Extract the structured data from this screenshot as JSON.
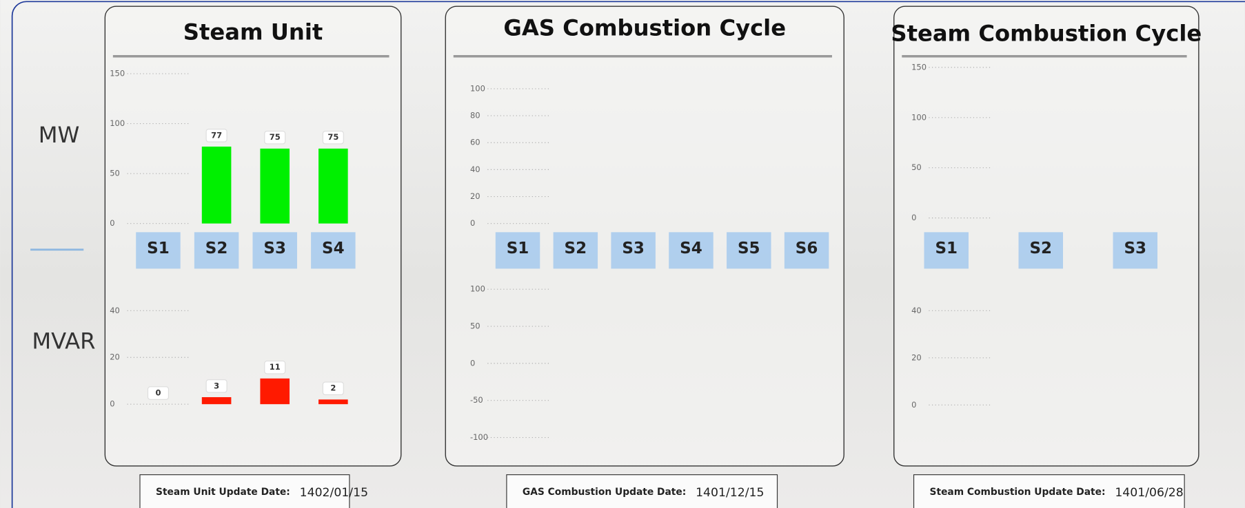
{
  "row_labels": {
    "mw": "MW",
    "mvar": "MVAR"
  },
  "panels": [
    {
      "title": "Steam Unit",
      "update_label": "Steam Unit Update Date:",
      "update_date": "1402/01/15"
    },
    {
      "title": "GAS Combustion Cycle",
      "update_label": "GAS Combustion Update Date:",
      "update_date": "1401/12/15"
    },
    {
      "title": "Steam Combustion Cycle",
      "update_label": "Steam Combustion Update Date:",
      "update_date": "1401/06/28"
    }
  ],
  "chart_data": [
    {
      "type": "bar",
      "categories": [
        "S1",
        "S2",
        "S3",
        "S4"
      ],
      "values": [
        null,
        77,
        75,
        75
      ],
      "color": "#00f000",
      "ylim": [
        0,
        150
      ],
      "yticks": [
        0,
        50,
        100,
        150
      ],
      "grid": true
    },
    {
      "type": "bar",
      "values": [
        0,
        3,
        11,
        2
      ],
      "color": "#ff1a00",
      "ylim": [
        0,
        40
      ],
      "yticks": [
        0,
        20,
        40
      ],
      "grid": true
    },
    {
      "type": "bar",
      "categories": [
        "S1",
        "S2",
        "S3",
        "S4",
        "S5",
        "S6"
      ],
      "ylim": [
        0,
        100
      ],
      "yticks": [
        0,
        20,
        40,
        60,
        80,
        100
      ],
      "grid": true
    },
    {
      "type": "bar",
      "ylim": [
        -100,
        100
      ],
      "yticks": [
        -100,
        -50,
        0,
        50,
        100
      ],
      "grid": true
    },
    {
      "type": "bar",
      "categories": [
        "S1",
        "S2",
        "S3"
      ],
      "ylim": [
        0,
        150
      ],
      "yticks": [
        0,
        50,
        100,
        150
      ],
      "grid": true
    },
    {
      "type": "bar",
      "ylim": [
        0,
        40
      ],
      "yticks": [
        0,
        20,
        40
      ],
      "grid": true
    }
  ]
}
